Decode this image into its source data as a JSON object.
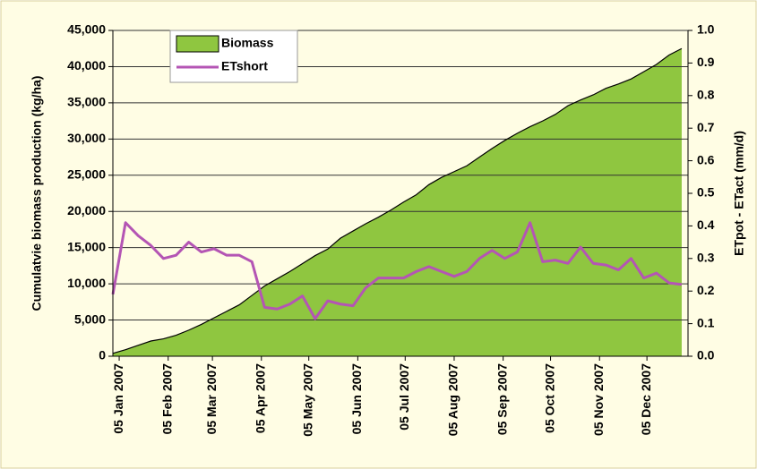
{
  "chart_data": {
    "type": "area_line",
    "ylabel": "Cumulatvie biomass production (kg/ha)",
    "y2label": "ETpot - ETact (mm/d)",
    "x": [
      "2007-01-01",
      "2007-01-09",
      "2007-01-17",
      "2007-01-25",
      "2007-02-02",
      "2007-02-10",
      "2007-02-18",
      "2007-02-26",
      "2007-03-06",
      "2007-03-14",
      "2007-03-22",
      "2007-03-30",
      "2007-04-07",
      "2007-04-15",
      "2007-04-23",
      "2007-05-01",
      "2007-05-09",
      "2007-05-17",
      "2007-05-25",
      "2007-06-02",
      "2007-06-10",
      "2007-06-18",
      "2007-06-26",
      "2007-07-04",
      "2007-07-12",
      "2007-07-20",
      "2007-07-28",
      "2007-08-05",
      "2007-08-13",
      "2007-08-21",
      "2007-08-29",
      "2007-09-06",
      "2007-09-14",
      "2007-09-22",
      "2007-09-30",
      "2007-10-08",
      "2007-10-16",
      "2007-10-24",
      "2007-11-01",
      "2007-11-09",
      "2007-11-17",
      "2007-11-25",
      "2007-12-03",
      "2007-12-11",
      "2007-12-19",
      "2007-12-27"
    ],
    "xlim": [
      "2007-01-01",
      "2007-12-31"
    ],
    "xticks": [
      {
        "value": "2007-01-05",
        "label": "05 Jan 2007"
      },
      {
        "value": "2007-02-05",
        "label": "05 Feb 2007"
      },
      {
        "value": "2007-03-05",
        "label": "05 Mar 2007"
      },
      {
        "value": "2007-04-05",
        "label": "05 Apr 2007"
      },
      {
        "value": "2007-05-05",
        "label": "05 May 2007"
      },
      {
        "value": "2007-06-05",
        "label": "05 Jun 2007"
      },
      {
        "value": "2007-07-05",
        "label": "05 Jul 2007"
      },
      {
        "value": "2007-08-05",
        "label": "05 Aug 2007"
      },
      {
        "value": "2007-09-05",
        "label": "05 Sep 2007"
      },
      {
        "value": "2007-10-05",
        "label": "05 Oct 2007"
      },
      {
        "value": "2007-11-05",
        "label": "05 Nov 2007"
      },
      {
        "value": "2007-12-05",
        "label": "05 Dec 2007"
      }
    ],
    "series": [
      {
        "name": "Biomass",
        "color": "#8fc640",
        "axis": "y",
        "values": [
          400,
          900,
          1500,
          2100,
          2400,
          2900,
          3600,
          4400,
          5300,
          6200,
          7100,
          8400,
          9700,
          10700,
          11700,
          12800,
          13900,
          14800,
          16300,
          17300,
          18300,
          19200,
          20200,
          21300,
          22300,
          23700,
          24700,
          25500,
          26300,
          27500,
          28700,
          29800,
          30800,
          31700,
          32500,
          33400,
          34600,
          35400,
          36100,
          37000,
          37600,
          38300,
          39300,
          40300,
          41600,
          42500
        ]
      },
      {
        "name": "ETshort",
        "color": "#b455b4",
        "axis": "y2",
        "values": [
          0.19,
          0.41,
          0.37,
          0.34,
          0.3,
          0.31,
          0.35,
          0.32,
          0.33,
          0.31,
          0.31,
          0.29,
          0.15,
          0.145,
          0.16,
          0.185,
          0.115,
          0.17,
          0.16,
          0.155,
          0.21,
          0.24,
          0.24,
          0.24,
          0.26,
          0.275,
          0.26,
          0.245,
          0.26,
          0.3,
          0.325,
          0.3,
          0.32,
          0.41,
          0.29,
          0.295,
          0.285,
          0.335,
          0.285,
          0.28,
          0.265,
          0.3,
          0.24,
          0.255,
          0.225,
          0.22
        ]
      }
    ],
    "ylim": [
      0,
      45000
    ],
    "yticks": [
      0,
      {
        "value": 5000,
        "label": "5,000"
      },
      {
        "value": 10000,
        "label": "10,000"
      },
      {
        "value": 15000,
        "label": "15,000"
      },
      {
        "value": 20000,
        "label": "20,000"
      },
      {
        "value": 25000,
        "label": "25,000"
      },
      {
        "value": 30000,
        "label": "30,000"
      },
      {
        "value": 35000,
        "label": "35,000"
      },
      {
        "value": 40000,
        "label": "40,000"
      },
      {
        "value": 45000,
        "label": "45,000"
      }
    ],
    "y2lim": [
      0,
      1
    ],
    "y2ticks": [
      {
        "value": 0,
        "label": "0.0"
      },
      0.1,
      0.2,
      0.3,
      0.4,
      0.5,
      0.6,
      0.7,
      0.8,
      0.9,
      {
        "value": 1,
        "label": "1.0"
      }
    ],
    "grid": true,
    "legend": "upper left"
  }
}
